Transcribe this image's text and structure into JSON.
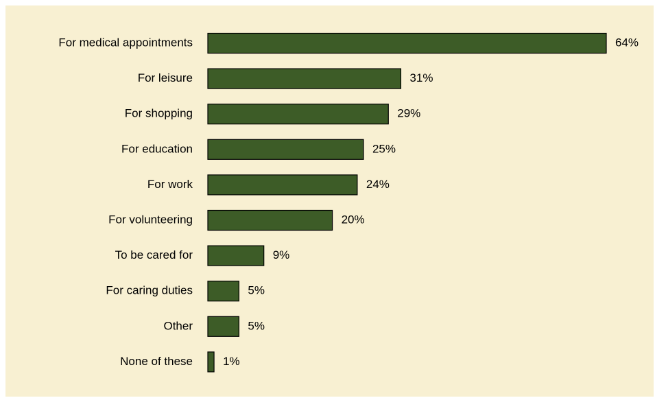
{
  "chart_data": {
    "type": "bar",
    "orientation": "horizontal",
    "categories": [
      "For medical appointments",
      "For leisure",
      "For shopping",
      "For education",
      "For work",
      "For volunteering",
      "To be cared for",
      "For caring duties",
      "Other",
      "None of these"
    ],
    "values": [
      64,
      31,
      29,
      25,
      24,
      20,
      9,
      5,
      5,
      1
    ],
    "value_labels": [
      "64%",
      "31%",
      "29%",
      "25%",
      "24%",
      "20%",
      "9%",
      "5%",
      "5%",
      "1%"
    ],
    "color": "#3d5c27"
  }
}
